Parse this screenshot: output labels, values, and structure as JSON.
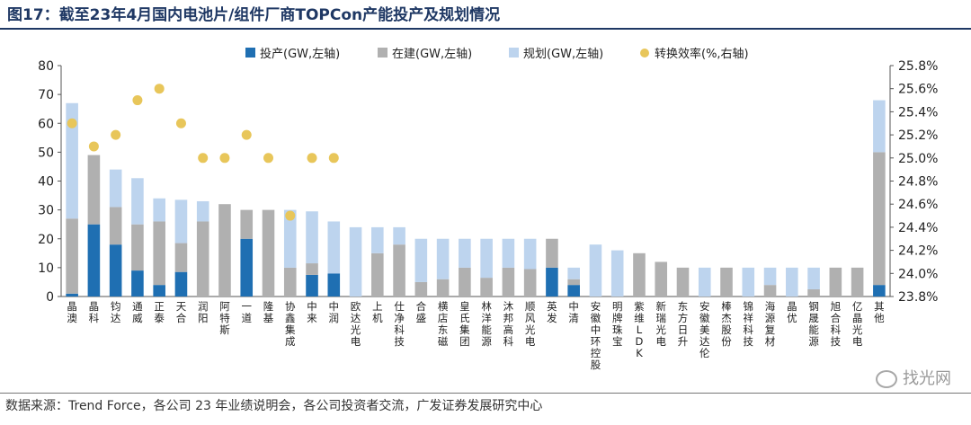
{
  "title": "图17：截至23年4月国内电池片/组件厂商TOPCon产能投产及规划情况",
  "source": "数据来源：Trend Force，各公司 23 年业绩说明会，各公司投资者交流，广发证券发展研究中心",
  "watermark": "找光网",
  "colors": {
    "title": "#1f3864",
    "production": "#1f6fb2",
    "construction": "#b0b0b0",
    "planned": "#bdd4ee",
    "efficiency": "#e8c65a"
  },
  "chart_data": {
    "type": "bar",
    "stacked": true,
    "categories": [
      "晶澳",
      "晶科",
      "钧达",
      "通威",
      "正泰",
      "天合",
      "润阳",
      "阿特斯",
      "一道",
      "隆基",
      "协鑫集成",
      "中来",
      "中润",
      "欧达光电",
      "上机",
      "仕净科技",
      "合盛",
      "横店东磁",
      "皇氏集团",
      "林洋能源",
      "沐邦高科",
      "顺风光电",
      "英发",
      "中清",
      "安徽中环控股",
      "明牌珠宝",
      "紫维LDK",
      "新瑞光电",
      "东方日升",
      "安徽美达伦",
      "棒杰股份",
      "锦祥科技",
      "海源复材",
      "晶优",
      "钢晟能源",
      "旭合科技",
      "亿晶光电",
      "其他"
    ],
    "series": [
      {
        "name": "投产(GW,左轴)",
        "axis": "left",
        "values": [
          1,
          25,
          18,
          9,
          4,
          8.5,
          0,
          0,
          20,
          0,
          0,
          7.5,
          8,
          0,
          0,
          0,
          0,
          0,
          0,
          0,
          0,
          0,
          10,
          4,
          0,
          0,
          0,
          0,
          0,
          0,
          0,
          0,
          0,
          0,
          0,
          0,
          0,
          4
        ]
      },
      {
        "name": "在建(GW,左轴)",
        "axis": "left",
        "values": [
          26,
          24,
          13,
          16,
          22,
          10,
          26,
          32,
          10,
          30,
          10,
          4,
          0,
          0,
          15,
          18,
          5,
          6,
          10,
          6.5,
          10,
          9.5,
          10,
          2,
          0,
          0,
          15,
          12,
          10,
          0,
          10,
          0,
          4,
          0,
          2.5,
          10,
          10,
          46
        ]
      },
      {
        "name": "规划(GW,左轴)",
        "axis": "left",
        "values": [
          40,
          0,
          13,
          16,
          8,
          15,
          7,
          0,
          0,
          0,
          20,
          18,
          18,
          24,
          9,
          6,
          15,
          14,
          10,
          13.5,
          10,
          10.5,
          0,
          4,
          18,
          16,
          0,
          0,
          0,
          10,
          0,
          10,
          6,
          10,
          7.5,
          0,
          0,
          18
        ]
      },
      {
        "name": "转换效率(%,右轴)",
        "axis": "right",
        "type": "scatter",
        "values": [
          25.3,
          25.1,
          25.2,
          25.5,
          25.6,
          25.3,
          25.0,
          25.0,
          25.2,
          25.0,
          24.5,
          25.0,
          25.0,
          null,
          null,
          null,
          null,
          null,
          null,
          null,
          null,
          null,
          null,
          null,
          null,
          null,
          null,
          null,
          null,
          null,
          null,
          null,
          null,
          null,
          null,
          null,
          null,
          null
        ]
      }
    ],
    "ylim_left": [
      0,
      80
    ],
    "yticks_left": [
      "0",
      "10",
      "20",
      "30",
      "40",
      "50",
      "60",
      "70",
      "80"
    ],
    "ylim_right": [
      23.8,
      25.8
    ],
    "yticks_right": [
      "23.8%",
      "24.0%",
      "24.2%",
      "24.4%",
      "24.6%",
      "24.8%",
      "25.0%",
      "25.2%",
      "25.4%",
      "25.6%",
      "25.8%"
    ],
    "legend_position": "top"
  }
}
